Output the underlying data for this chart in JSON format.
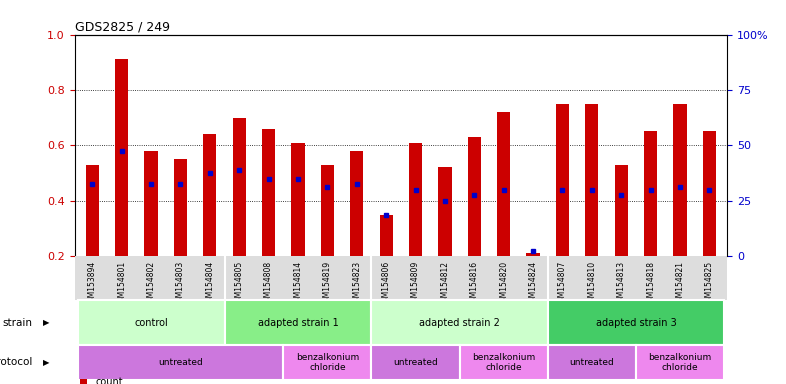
{
  "title": "GDS2825 / 249",
  "samples": [
    "GSM153894",
    "GSM154801",
    "GSM154802",
    "GSM154803",
    "GSM154804",
    "GSM154805",
    "GSM154808",
    "GSM154814",
    "GSM154819",
    "GSM154823",
    "GSM154806",
    "GSM154809",
    "GSM154812",
    "GSM154816",
    "GSM154820",
    "GSM154824",
    "GSM154807",
    "GSM154810",
    "GSM154813",
    "GSM154818",
    "GSM154821",
    "GSM154825"
  ],
  "red_values": [
    0.53,
    0.91,
    0.58,
    0.55,
    0.64,
    0.7,
    0.66,
    0.61,
    0.53,
    0.58,
    0.35,
    0.61,
    0.52,
    0.63,
    0.72,
    0.21,
    0.75,
    0.75,
    0.53,
    0.65,
    0.75,
    0.65
  ],
  "blue_values": [
    0.46,
    0.58,
    0.46,
    0.46,
    0.5,
    0.51,
    0.48,
    0.48,
    0.45,
    0.46,
    0.35,
    0.44,
    0.4,
    0.42,
    0.44,
    0.22,
    0.44,
    0.44,
    0.42,
    0.44,
    0.45,
    0.44
  ],
  "red_color": "#cc0000",
  "blue_color": "#0000cc",
  "ylim_left": [
    0.2,
    1.0
  ],
  "yticks_left": [
    0.2,
    0.4,
    0.6,
    0.8,
    1.0
  ],
  "yticks_right": [
    0,
    25,
    50,
    75,
    100
  ],
  "ytick_labels_right": [
    "0",
    "25",
    "50",
    "75",
    "100%"
  ],
  "strain_groups": [
    {
      "label": "control",
      "start": 0,
      "end": 5,
      "color": "#ccffcc"
    },
    {
      "label": "adapted strain 1",
      "start": 5,
      "end": 10,
      "color": "#88ee88"
    },
    {
      "label": "adapted strain 2",
      "start": 10,
      "end": 16,
      "color": "#ccffcc"
    },
    {
      "label": "adapted strain 3",
      "start": 16,
      "end": 22,
      "color": "#44cc66"
    }
  ],
  "protocol_groups": [
    {
      "label": "untreated",
      "start": 0,
      "end": 7,
      "color": "#cc77dd"
    },
    {
      "label": "benzalkonium\nchloride",
      "start": 7,
      "end": 10,
      "color": "#ee88ee"
    },
    {
      "label": "untreated",
      "start": 10,
      "end": 13,
      "color": "#cc77dd"
    },
    {
      "label": "benzalkonium\nchloride",
      "start": 13,
      "end": 16,
      "color": "#ee88ee"
    },
    {
      "label": "untreated",
      "start": 16,
      "end": 19,
      "color": "#cc77dd"
    },
    {
      "label": "benzalkonium\nchloride",
      "start": 19,
      "end": 22,
      "color": "#ee88ee"
    }
  ],
  "bar_width": 0.45,
  "bar_bottom": 0.2
}
